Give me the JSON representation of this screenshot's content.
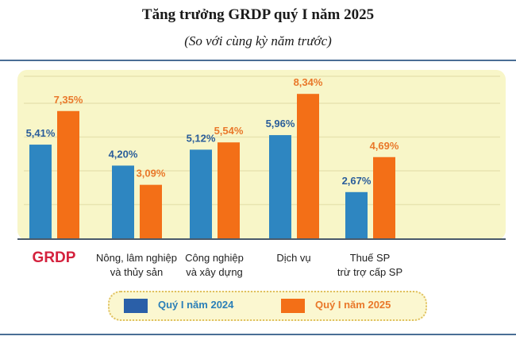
{
  "chart_data": {
    "type": "bar",
    "title": "Tăng trưởng GRDP quý I năm 2025",
    "subtitle": "(So với cùng kỳ năm trước)",
    "categories": [
      "GRDP",
      "Nông, lâm nghiệp\nvà thủy sản",
      "Công nghiệp\nvà xây dựng",
      "Dịch vụ",
      "Thuế SP\ntrừ trợ cấp SP"
    ],
    "series": [
      {
        "name": "Quý I năm 2024",
        "values": [
          5.41,
          4.2,
          5.12,
          5.96,
          2.67
        ],
        "labels": [
          "5,41%",
          "4,20%",
          "5,12%",
          "5,96%",
          "2,67%"
        ],
        "color": "#2e86c1"
      },
      {
        "name": "Quý I năm 2025",
        "values": [
          7.35,
          3.09,
          5.54,
          8.34,
          4.69
        ],
        "labels": [
          "7,35%",
          "3,09%",
          "5,54%",
          "8,34%",
          "4,69%"
        ],
        "color": "#f36f17"
      }
    ],
    "ylim": [
      0,
      9
    ],
    "grid": true,
    "legend": "bottom",
    "colors": {
      "background": "#f8f6c8",
      "highlight_category": "#d4213d",
      "label_2024": "#2a5d9a",
      "label_2025": "#e9782a"
    }
  }
}
